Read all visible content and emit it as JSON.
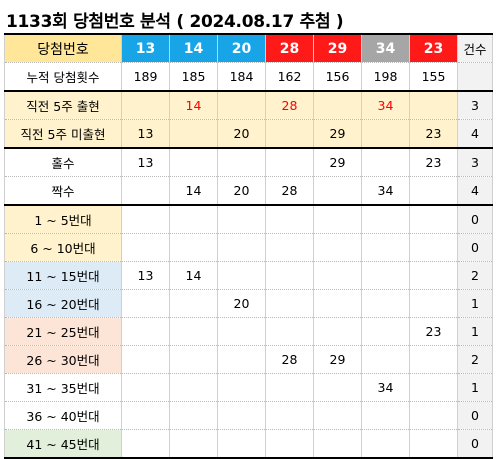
{
  "title": "1133회 당첨번호 분석 ( 2024.08.17 추첨 )",
  "colors": {
    "ball_blue": "#17a5e8",
    "ball_red": "#ff1a1a",
    "ball_gray": "#a6a6a6",
    "header_yellow": "#ffe699",
    "section_yellow": "#fff2cc",
    "range_1_10": "#fff2cc",
    "range_11_20": "#ddebf7",
    "range_21_30": "#fce4d6",
    "range_31_40": "#ffffff",
    "range_41_45": "#e2efda",
    "count_col": "#f2f2f2",
    "highlight_text": "#ff0000"
  },
  "header": {
    "label": "당첨번호",
    "balls": [
      {
        "num": "13",
        "color": "blue"
      },
      {
        "num": "14",
        "color": "blue"
      },
      {
        "num": "20",
        "color": "blue"
      },
      {
        "num": "28",
        "color": "red"
      },
      {
        "num": "29",
        "color": "red"
      },
      {
        "num": "34",
        "color": "gray"
      },
      {
        "num": "23",
        "color": "red"
      }
    ],
    "count_label": "건수"
  },
  "rows": [
    {
      "label": "누적 당첨횟수",
      "cells": [
        "189",
        "185",
        "184",
        "162",
        "156",
        "198",
        "155"
      ],
      "count": "",
      "bg": "#ffffff",
      "labelbg": "#ffffff",
      "thick": false
    },
    {
      "label": "직전 5주 출현",
      "cells": [
        "",
        "14",
        "",
        "28",
        "",
        "34",
        ""
      ],
      "count": "3",
      "bg": "#fff2cc",
      "labelbg": "#fff2cc",
      "thick": true,
      "red": true
    },
    {
      "label": "직전 5주 미출현",
      "cells": [
        "13",
        "",
        "20",
        "",
        "29",
        "",
        "23"
      ],
      "count": "4",
      "bg": "#fff2cc",
      "labelbg": "#fff2cc",
      "thick": false
    },
    {
      "label": "홀수",
      "cells": [
        "13",
        "",
        "",
        "",
        "29",
        "",
        "23"
      ],
      "count": "3",
      "bg": "#ffffff",
      "labelbg": "#ffffff",
      "thick": true
    },
    {
      "label": "짝수",
      "cells": [
        "",
        "14",
        "20",
        "28",
        "",
        "34",
        ""
      ],
      "count": "4",
      "bg": "#ffffff",
      "labelbg": "#ffffff",
      "thick": false
    },
    {
      "label": "1 ~ 5번대",
      "cells": [
        "",
        "",
        "",
        "",
        "",
        "",
        ""
      ],
      "count": "0",
      "bg": "#ffffff",
      "labelbg": "#fff2cc",
      "thick": true
    },
    {
      "label": "6 ~ 10번대",
      "cells": [
        "",
        "",
        "",
        "",
        "",
        "",
        ""
      ],
      "count": "0",
      "bg": "#ffffff",
      "labelbg": "#fff2cc",
      "thick": false
    },
    {
      "label": "11 ~ 15번대",
      "cells": [
        "13",
        "14",
        "",
        "",
        "",
        "",
        ""
      ],
      "count": "2",
      "bg": "#ffffff",
      "labelbg": "#ddebf7",
      "thick": false
    },
    {
      "label": "16 ~ 20번대",
      "cells": [
        "",
        "",
        "20",
        "",
        "",
        "",
        ""
      ],
      "count": "1",
      "bg": "#ffffff",
      "labelbg": "#ddebf7",
      "thick": false
    },
    {
      "label": "21 ~ 25번대",
      "cells": [
        "",
        "",
        "",
        "",
        "",
        "",
        "23"
      ],
      "count": "1",
      "bg": "#ffffff",
      "labelbg": "#fce4d6",
      "thick": false
    },
    {
      "label": "26 ~ 30번대",
      "cells": [
        "",
        "",
        "",
        "28",
        "29",
        "",
        ""
      ],
      "count": "2",
      "bg": "#ffffff",
      "labelbg": "#fce4d6",
      "thick": false
    },
    {
      "label": "31 ~ 35번대",
      "cells": [
        "",
        "",
        "",
        "",
        "",
        "34",
        ""
      ],
      "count": "1",
      "bg": "#ffffff",
      "labelbg": "#ffffff",
      "thick": false
    },
    {
      "label": "36 ~ 40번대",
      "cells": [
        "",
        "",
        "",
        "",
        "",
        "",
        ""
      ],
      "count": "0",
      "bg": "#ffffff",
      "labelbg": "#ffffff",
      "thick": false
    },
    {
      "label": "41 ~ 45번대",
      "cells": [
        "",
        "",
        "",
        "",
        "",
        "",
        ""
      ],
      "count": "0",
      "bg": "#ffffff",
      "labelbg": "#e2efda",
      "thick": false
    }
  ]
}
